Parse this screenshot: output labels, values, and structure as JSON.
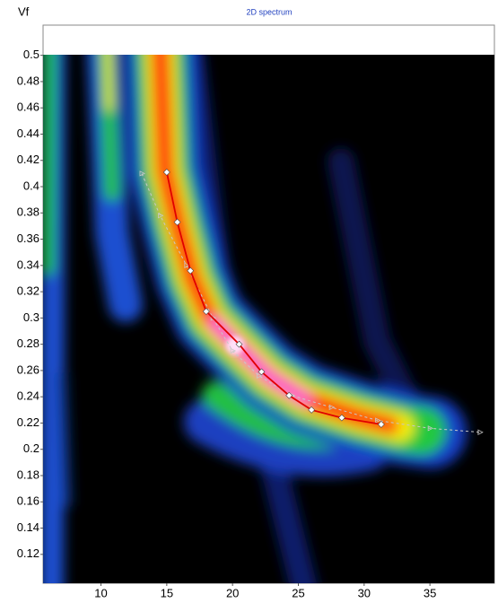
{
  "chart_data": {
    "type": "line",
    "title": "2D spectrum",
    "y_label": "Vf",
    "xlim": [
      5.6,
      39.9
    ],
    "ylim": [
      0.098,
      0.523
    ],
    "xticks": [
      10,
      15,
      20,
      25,
      30,
      35
    ],
    "yticks": [
      0.5,
      0.48,
      0.46,
      0.44,
      0.42,
      0.4,
      0.38,
      0.36,
      0.34,
      0.32,
      0.3,
      0.28,
      0.26,
      0.24,
      0.22,
      0.2,
      0.18,
      0.16,
      0.14,
      0.12
    ],
    "series": [
      {
        "color": "#e00000",
        "marker": "diamond",
        "x": [
          15,
          15.8,
          16.8,
          18,
          20.5,
          22.2,
          24.3,
          26,
          28.3,
          31.3
        ],
        "values": [
          0.411,
          0.373,
          0.336,
          0.305,
          0.28,
          0.259,
          0.241,
          0.23,
          0.224,
          0.219
        ]
      },
      {
        "color": "#c8c8c8",
        "marker": "triangle",
        "dashed": true,
        "x": [
          13.1,
          14.5,
          16.5,
          18.5,
          20,
          22,
          24.5,
          27.5,
          31,
          35,
          38.8
        ],
        "values": [
          0.41,
          0.378,
          0.34,
          0.3,
          0.275,
          0.256,
          0.241,
          0.232,
          0.222,
          0.216,
          0.213
        ]
      }
    ]
  }
}
